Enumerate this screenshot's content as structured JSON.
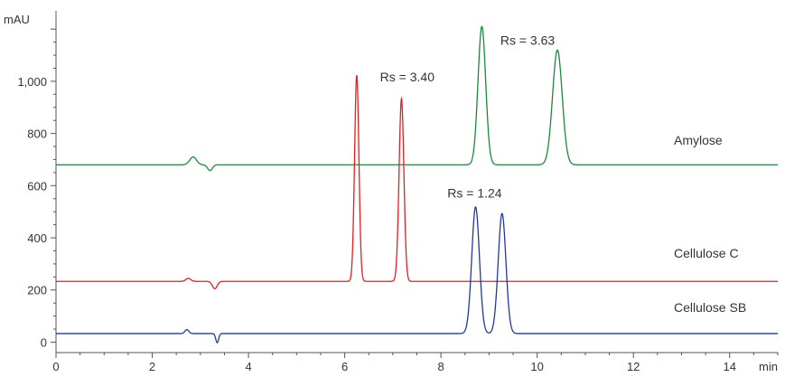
{
  "chart_data": {
    "type": "line",
    "title": "",
    "xlabel": "min",
    "ylabel": "mAU",
    "xlim": [
      0,
      15
    ],
    "ylim": [
      -40,
      1270
    ],
    "x_ticks": [
      0,
      2,
      4,
      6,
      8,
      10,
      12,
      14
    ],
    "x_tick_labels": [
      "0",
      "2",
      "4",
      "6",
      "8",
      "10",
      "12",
      "14"
    ],
    "y_ticks": [
      0,
      200,
      400,
      600,
      800,
      1000
    ],
    "y_tick_labels": [
      "0",
      "200",
      "400",
      "600",
      "800",
      "1,000"
    ],
    "grid": false,
    "series": [
      {
        "name": "Amylose",
        "color": "#1a8a3a",
        "baseline": 680,
        "peaks": [
          {
            "t": 2.85,
            "h": 30,
            "w": 0.07
          },
          {
            "t": 3.2,
            "h": -22,
            "w": 0.05
          },
          {
            "t": 8.85,
            "h": 530,
            "w": 0.08
          },
          {
            "t": 10.42,
            "h": 440,
            "w": 0.1
          }
        ]
      },
      {
        "name": "Cellulose C",
        "color": "#e02020",
        "baseline": 233,
        "peaks": [
          {
            "t": 2.75,
            "h": 12,
            "w": 0.05
          },
          {
            "t": 3.3,
            "h": -28,
            "w": 0.05
          },
          {
            "t": 6.25,
            "h": 790,
            "w": 0.045
          },
          {
            "t": 7.18,
            "h": 700,
            "w": 0.05
          }
        ]
      },
      {
        "name": "Cellulose SB",
        "color": "#1f3a9a",
        "baseline": 33,
        "peaks": [
          {
            "t": 2.72,
            "h": 15,
            "w": 0.04
          },
          {
            "t": 3.35,
            "h": -35,
            "w": 0.03
          },
          {
            "t": 8.72,
            "h": 485,
            "w": 0.08
          },
          {
            "t": 9.27,
            "h": 460,
            "w": 0.08
          }
        ]
      }
    ],
    "annotations": [
      {
        "text": "Rs = 3.40",
        "x": 7.3,
        "y": 1000
      },
      {
        "text": "Rs = 3.63",
        "x": 9.8,
        "y": 1140
      },
      {
        "text": "Rs = 1.24",
        "x": 8.7,
        "y": 555
      }
    ]
  }
}
